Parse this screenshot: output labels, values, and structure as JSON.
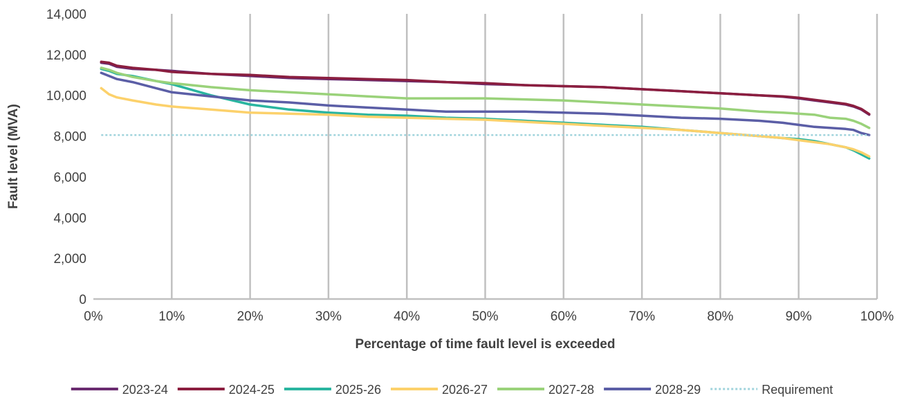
{
  "chart_data": {
    "type": "line",
    "title": "",
    "xlabel": "Percentage of time fault level is exceeded",
    "ylabel": "Fault level (MVA)",
    "xlim": [
      0,
      100
    ],
    "ylim": [
      0,
      14000
    ],
    "x_ticks": [
      0,
      10,
      20,
      30,
      40,
      50,
      60,
      70,
      80,
      90,
      100
    ],
    "x_tick_labels": [
      "0%",
      "10%",
      "20%",
      "30%",
      "40%",
      "50%",
      "60%",
      "70%",
      "80%",
      "90%",
      "100%"
    ],
    "y_ticks": [
      0,
      2000,
      4000,
      6000,
      8000,
      10000,
      12000,
      14000
    ],
    "y_tick_labels": [
      "0",
      "2,000",
      "4,000",
      "6,000",
      "8,000",
      "10,000",
      "12,000",
      "14,000"
    ],
    "grid": "vertical",
    "legend": "bottom",
    "x": [
      1,
      2,
      3,
      5,
      8,
      10,
      15,
      20,
      25,
      30,
      35,
      40,
      45,
      50,
      55,
      60,
      65,
      70,
      75,
      80,
      85,
      88,
      90,
      92,
      94,
      96,
      97,
      98,
      99
    ],
    "series": [
      {
        "name": "2023-24",
        "color": "#6a2c70",
        "values": [
          11600,
          11550,
          11400,
          11300,
          11250,
          11200,
          11050,
          10950,
          10850,
          10800,
          10750,
          10700,
          10650,
          10550,
          10500,
          10450,
          10400,
          10300,
          10200,
          10100,
          10000,
          9930,
          9850,
          9750,
          9650,
          9550,
          9450,
          9300,
          9050
        ]
      },
      {
        "name": "2024-25",
        "color": "#8b1e3f",
        "values": [
          11650,
          11600,
          11450,
          11350,
          11250,
          11150,
          11050,
          11000,
          10900,
          10850,
          10800,
          10750,
          10650,
          10600,
          10500,
          10450,
          10400,
          10300,
          10200,
          10100,
          10000,
          9950,
          9880,
          9780,
          9680,
          9580,
          9480,
          9330,
          9080
        ]
      },
      {
        "name": "2025-26",
        "color": "#2ab5a0",
        "values": [
          11300,
          11200,
          11050,
          10950,
          10700,
          10550,
          10000,
          9550,
          9300,
          9150,
          9050,
          9000,
          8900,
          8850,
          8750,
          8650,
          8550,
          8450,
          8300,
          8150,
          8000,
          7900,
          7850,
          7750,
          7600,
          7450,
          7300,
          7100,
          6900
        ]
      },
      {
        "name": "2026-27",
        "color": "#fcd16b",
        "values": [
          10350,
          10050,
          9900,
          9750,
          9550,
          9450,
          9300,
          9150,
          9100,
          9050,
          8950,
          8900,
          8850,
          8800,
          8700,
          8600,
          8500,
          8400,
          8300,
          8150,
          8000,
          7900,
          7800,
          7700,
          7600,
          7450,
          7350,
          7200,
          7000
        ]
      },
      {
        "name": "2027-28",
        "color": "#9ad27a",
        "values": [
          11350,
          11250,
          11100,
          10900,
          10700,
          10600,
          10400,
          10250,
          10150,
          10050,
          9950,
          9850,
          9850,
          9850,
          9800,
          9750,
          9650,
          9550,
          9450,
          9350,
          9200,
          9150,
          9100,
          9050,
          8900,
          8850,
          8750,
          8600,
          8400
        ]
      },
      {
        "name": "2028-29",
        "color": "#5b5ea6",
        "values": [
          11100,
          10950,
          10800,
          10650,
          10350,
          10150,
          9950,
          9750,
          9650,
          9500,
          9400,
          9300,
          9200,
          9200,
          9200,
          9150,
          9100,
          9000,
          8900,
          8850,
          8750,
          8650,
          8550,
          8450,
          8400,
          8350,
          8300,
          8150,
          8050
        ]
      },
      {
        "name": "Requirement",
        "color": "#9fd3dc",
        "dashed": true,
        "values": [
          8050,
          8050,
          8050,
          8050,
          8050,
          8050,
          8050,
          8050,
          8050,
          8050,
          8050,
          8050,
          8050,
          8050,
          8050,
          8050,
          8050,
          8050,
          8050,
          8050,
          8050,
          8050,
          8050,
          8050,
          8050,
          8050,
          8050,
          8050,
          8050
        ]
      }
    ]
  }
}
